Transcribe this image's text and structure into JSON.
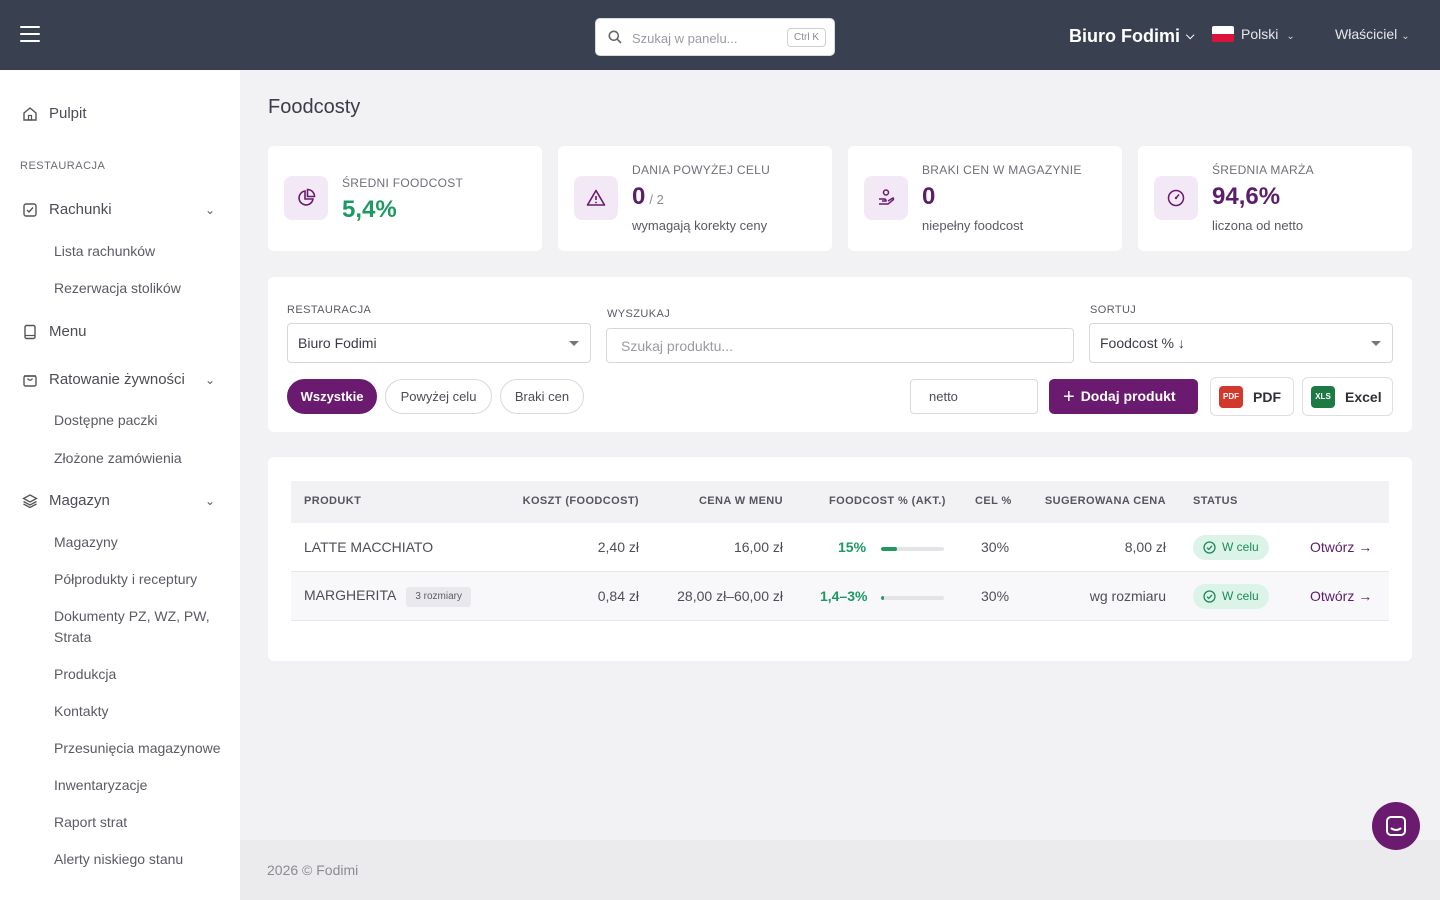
{
  "topbar": {
    "search_placeholder": "Szukaj w panelu...",
    "search_shortcut": "Ctrl K",
    "company": "Biuro Fodimi",
    "language": "Polski",
    "user_role": "Właściciel"
  },
  "sidebar": {
    "dashboard": "Pulpit",
    "section": "RESTAURACJA",
    "groups": [
      {
        "label": "Rachunki",
        "items": [
          "Lista rachunków",
          "Rezerwacja stolików"
        ]
      },
      {
        "label": "Menu",
        "items": []
      },
      {
        "label": "Ratowanie żywności",
        "items": [
          "Dostępne paczki",
          "Złożone zamówienia"
        ]
      },
      {
        "label": "Magazyn",
        "items": [
          "Magazyny",
          "Półprodukty i receptury",
          "Dokumenty PZ, WZ, PW, Strata",
          "Produkcja",
          "Kontakty",
          "Przesunięcia magazynowe",
          "Inwentaryzacje",
          "Raport strat",
          "Alerty niskiego stanu"
        ]
      }
    ]
  },
  "page": {
    "title": "Foodcosty"
  },
  "stats": [
    {
      "label": "ŚREDNI FOODCOST",
      "value": "5,4%",
      "color": "#1d9a63"
    },
    {
      "label": "DANIA POWYŻEJ CELU",
      "value": "0",
      "of": "/ 2",
      "sub": "wymagają korekty ceny"
    },
    {
      "label": "BRAKI CEN W MAGAZYNIE",
      "value": "0",
      "sub": "niepełny foodcost"
    },
    {
      "label": "ŚREDNIA MARŻA",
      "value": "94,6%",
      "sub": "liczona od netto"
    }
  ],
  "filters": {
    "restaurant_label": "RESTAURACJA",
    "restaurant_value": "Biuro Fodimi",
    "search_label": "WYSZUKAJ",
    "search_placeholder": "Szukaj produktu...",
    "sort_label": "SORTUJ",
    "sort_value": "Foodcost % ↓",
    "pills": [
      "Wszystkie",
      "Powyżej celu",
      "Braki cen"
    ],
    "price_mode": "netto",
    "add_button": "Dodaj produkt",
    "export_pdf": "PDF",
    "export_excel": "Excel",
    "pdf_icon_text": "PDF",
    "xls_icon_text": "XLS"
  },
  "table": {
    "headers": [
      "PRODUKT",
      "KOSZT (FOODCOST)",
      "CENA W MENU",
      "FOODCOST % (AKT.)",
      "CEL %",
      "SUGEROWANA CENA",
      "STATUS"
    ],
    "rows": [
      {
        "product": "LATTE MACCHIATO",
        "badge": "",
        "cost": "2,40 zł",
        "price": "16,00 zł",
        "foodcost": "15%",
        "foodcost_level": 0.15,
        "target": "30%",
        "suggested": "8,00 zł",
        "status": "W celu",
        "action": "Otwórz →"
      },
      {
        "product": "MARGHERITA",
        "badge": "3 rozmiary",
        "cost": "0,84 zł",
        "price": "28,00 zł–60,00 zł",
        "foodcost": "1,4–3%",
        "foodcost_level": 0.03,
        "target": "30%",
        "suggested": "wg rozmiaru",
        "status": "W celu",
        "action": "Otwórz →"
      }
    ]
  },
  "footer": "2026 © Fodimi",
  "colors": {
    "topbar": "#394050",
    "accent": "#6a1b6f",
    "success": "#1d9a63"
  }
}
